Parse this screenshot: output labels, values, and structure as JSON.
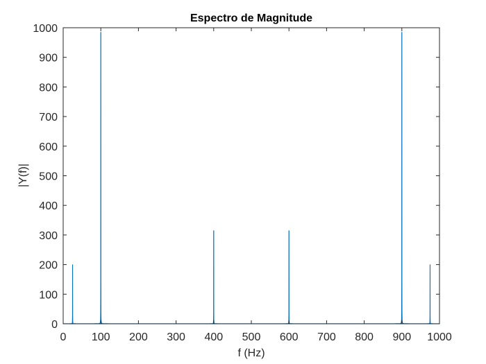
{
  "chart_data": {
    "type": "line",
    "title": "Espectro de Magnitude",
    "xlabel": "f (Hz)",
    "ylabel": "|Y(f)|",
    "xlim": [
      0,
      1000
    ],
    "ylim": [
      0,
      1000
    ],
    "xticks": [
      0,
      100,
      200,
      300,
      400,
      500,
      600,
      700,
      800,
      900,
      1000
    ],
    "yticks": [
      0,
      100,
      200,
      300,
      400,
      500,
      600,
      700,
      800,
      900,
      1000
    ],
    "xtick_labels": [
      "0",
      "100",
      "200",
      "300",
      "400",
      "500",
      "600",
      "700",
      "800",
      "900",
      "1000"
    ],
    "ytick_labels": [
      "0",
      "100",
      "200",
      "300",
      "400",
      "500",
      "600",
      "700",
      "800",
      "900",
      "1000"
    ],
    "grid": false,
    "series": [
      {
        "color": "#0072BD",
        "peaks": [
          {
            "x": 25,
            "y": 200
          },
          {
            "x": 100,
            "y": 985
          },
          {
            "x": 400,
            "y": 315
          },
          {
            "x": 600,
            "y": 315
          },
          {
            "x": 900,
            "y": 985
          },
          {
            "x": 975,
            "y": 200
          }
        ]
      }
    ],
    "axis_color": "#262626"
  }
}
